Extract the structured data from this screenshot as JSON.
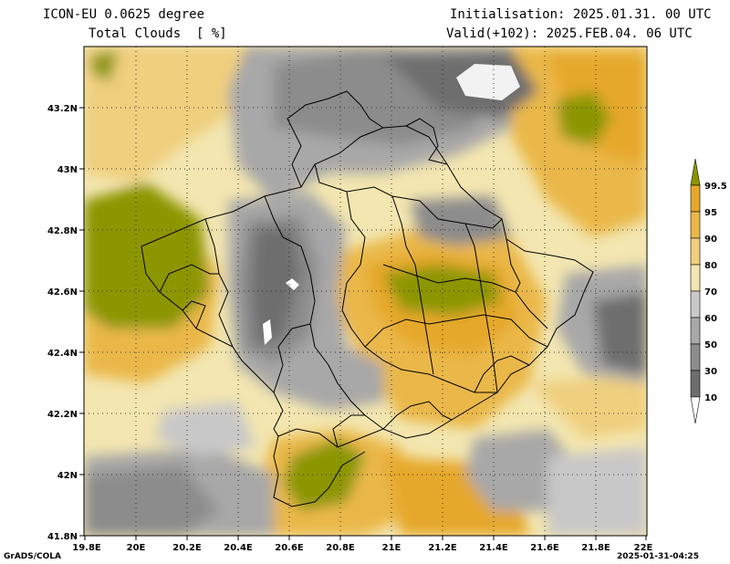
{
  "header": {
    "model": "ICON-EU 0.0625 degree",
    "field": "Total Clouds  [ %]",
    "init": "Initialisation: 2025.01.31. 00 UTC",
    "valid": "Valid(+102): 2025.FEB.04. 06 UTC"
  },
  "axes": {
    "lat_labels": [
      "43.2N",
      "43N",
      "42.8N",
      "42.6N",
      "42.4N",
      "42.2N",
      "42N",
      "41.8N"
    ],
    "lon_labels": [
      "19.8E",
      "20E",
      "20.2E",
      "20.4E",
      "20.6E",
      "20.8E",
      "21E",
      "21.2E",
      "21.4E",
      "21.6E",
      "21.8E",
      "22E"
    ]
  },
  "colorbar": {
    "levels": [
      "99.5",
      "95",
      "90",
      "80",
      "70",
      "60",
      "50",
      "30",
      "10"
    ],
    "colors": [
      "#8c9600",
      "#e6a82a",
      "#eab84a",
      "#f0cf7e",
      "#f3e6b0",
      "#c8c8c8",
      "#a8a8a8",
      "#8c8c8c",
      "#6e6e6e",
      "#4d4d4d",
      "#ffffff"
    ]
  },
  "footer": {
    "left": "GrADS/COLA",
    "right": "2025-01-31-04:25"
  }
}
